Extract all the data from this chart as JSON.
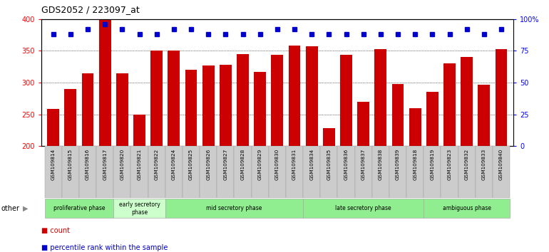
{
  "title": "GDS2052 / 223097_at",
  "samples": [
    "GSM109814",
    "GSM109815",
    "GSM109816",
    "GSM109817",
    "GSM109820",
    "GSM109821",
    "GSM109822",
    "GSM109824",
    "GSM109825",
    "GSM109826",
    "GSM109827",
    "GSM109828",
    "GSM109829",
    "GSM109830",
    "GSM109831",
    "GSM109834",
    "GSM109835",
    "GSM109836",
    "GSM109837",
    "GSM109838",
    "GSM109839",
    "GSM109818",
    "GSM109819",
    "GSM109823",
    "GSM109832",
    "GSM109833",
    "GSM109840"
  ],
  "counts": [
    258,
    290,
    315,
    400,
    315,
    250,
    350,
    350,
    320,
    327,
    328,
    345,
    317,
    344,
    358,
    357,
    228,
    343,
    270,
    352,
    298,
    260,
    285,
    330,
    340,
    297,
    352
  ],
  "percentile_ranks": [
    88,
    88,
    92,
    96,
    92,
    88,
    88,
    92,
    92,
    88,
    88,
    88,
    88,
    92,
    92,
    88,
    88,
    88,
    88,
    88,
    88,
    88,
    88,
    88,
    92,
    88,
    92
  ],
  "bar_color": "#cc0000",
  "dot_color": "#0000cc",
  "ylim_left": [
    200,
    400
  ],
  "ylim_right": [
    0,
    100
  ],
  "yticks_left": [
    200,
    250,
    300,
    350,
    400
  ],
  "yticks_right": [
    0,
    25,
    50,
    75,
    100
  ],
  "phases": [
    {
      "label": "proliferative phase",
      "start": 0,
      "end": 4,
      "color": "#90ee90"
    },
    {
      "label": "early secretory\nphase",
      "start": 4,
      "end": 7,
      "color": "#ccffcc"
    },
    {
      "label": "mid secretory phase",
      "start": 7,
      "end": 15,
      "color": "#90ee90"
    },
    {
      "label": "late secretory phase",
      "start": 15,
      "end": 22,
      "color": "#90ee90"
    },
    {
      "label": "ambiguous phase",
      "start": 22,
      "end": 27,
      "color": "#90ee90"
    }
  ],
  "legend_count_color": "#cc0000",
  "legend_pct_color": "#0000cc",
  "other_label": "other",
  "xtick_bg_color": "#cccccc",
  "plot_bg_color": "#ffffff"
}
